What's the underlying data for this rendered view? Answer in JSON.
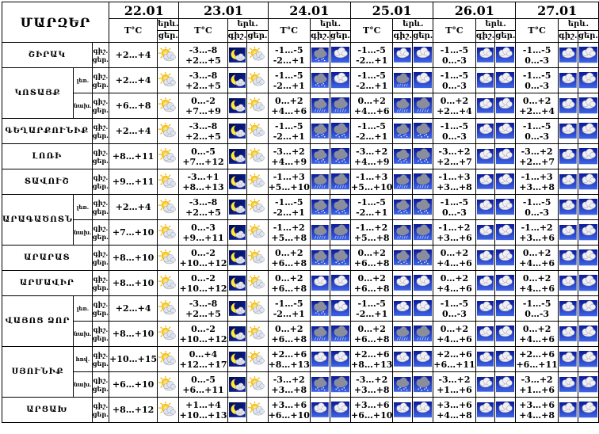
{
  "title": "ՄԱՐԶԵՐ",
  "days": [
    "22.01",
    "23.01",
    "24.01",
    "25.01",
    "26.01",
    "27.01"
  ],
  "col_temp": "T°C",
  "col_phen": "երև.",
  "col_night": "գիշ.",
  "col_dayt": "ցեր.",
  "tod_night": "գիշ.",
  "tod_day": "ցեր.",
  "rows": [
    {
      "region": "ՇԻՐԱԿ",
      "zone": "",
      "t": [
        "+2…+4",
        "-3…-8\n+2…+5",
        "-1…-5\n-2…+1",
        "-1…-5\n-2…+1",
        "-1…-5\n0…-3",
        "-1…-5\n0…-3"
      ],
      "ic": [
        [
          "sunc"
        ],
        [
          "moon",
          "sunc"
        ],
        [
          "snow",
          "cloud"
        ],
        [
          "cloud",
          "cloud"
        ],
        [
          "cloud",
          "cloud"
        ],
        [
          "cloud",
          "cloud"
        ]
      ]
    },
    {
      "region": "ԿՈՏԱՅՔ",
      "zone": "լեռ.",
      "t": [
        "+2…+4",
        "-3…-8\n+2…+5",
        "-1…-5\n-2…+1",
        "-1…-5\n-2…+1",
        "-1…-5\n0…-3",
        "-1…-5\n0…-3"
      ],
      "ic": [
        [
          "sunc"
        ],
        [
          "moon",
          "sunc"
        ],
        [
          "snow",
          "cloud"
        ],
        [
          "rain",
          "cloud"
        ],
        [
          "cloud",
          "cloud"
        ],
        [
          "cloud",
          "cloud"
        ]
      ]
    },
    {
      "region": "ԿՈՏԱՅՔ",
      "zone": "նախ.",
      "t": [
        "+6…+8",
        "0…-2\n+7…+9",
        "0…+2\n+4…+6",
        "0…+2\n+4…+6",
        "0…+2\n+2…+4",
        "0…+2\n+2…+4"
      ],
      "ic": [
        [
          "sunc"
        ],
        [
          "moon",
          "sunc"
        ],
        [
          "rain",
          "rain"
        ],
        [
          "rain",
          "rain"
        ],
        [
          "cloud",
          "cloud"
        ],
        [
          "cloud",
          "cloud"
        ]
      ]
    },
    {
      "region": "ԳԵՂԱՐՔՈՒՆԻՔ",
      "zone": "",
      "t": [
        "+2…+4",
        "-3…-8\n+2…+5",
        "-1…-5\n-2…+1",
        "-1…-5\n-2…+1",
        "-1…-5\n0…-3",
        "-1…-5\n0…-3"
      ],
      "ic": [
        [
          "sunc"
        ],
        [
          "moon",
          "sunc"
        ],
        [
          "snow",
          "snow"
        ],
        [
          "snow",
          "snow"
        ],
        [
          "cloud",
          "cloud"
        ],
        [
          "cloud",
          "cloud"
        ]
      ]
    },
    {
      "region": "ԼՈՌԻ",
      "zone": "",
      "t": [
        "+8…+11",
        "0…-5\n+7…+12",
        "-3…+2\n+4…+9",
        "-3…+2\n+4…+9",
        "-3…+2\n+2…+7",
        "-3…+2\n+2…+7"
      ],
      "ic": [
        [
          "sunc"
        ],
        [
          "moon",
          "sunc"
        ],
        [
          "snow",
          "snow"
        ],
        [
          "snow",
          "snow"
        ],
        [
          "cloud",
          "cloud"
        ],
        [
          "cloud",
          "cloud"
        ]
      ]
    },
    {
      "region": "ՏԱՎՈՒՇ",
      "zone": "",
      "t": [
        "+9…+11",
        "-3…+1\n+8…+13",
        "-1…+3\n+5…+10",
        "-1…+3\n+5…+10",
        "-1…+3\n+3…+8",
        "-1…+3\n+3…+8"
      ],
      "ic": [
        [
          "sunc"
        ],
        [
          "moon",
          "sunc"
        ],
        [
          "rain",
          "rain"
        ],
        [
          "rain",
          "rain"
        ],
        [
          "cloud",
          "cloud"
        ],
        [
          "cloud",
          "cloud"
        ]
      ]
    },
    {
      "region": "ԱՐԱԳԱԾՈՏՆ",
      "zone": "լեռ.",
      "t": [
        "+2…+4",
        "-3…-8\n+2…+5",
        "-1…-5\n-2…+1",
        "-1…-5\n-2…+1",
        "-1…-5\n0…-3",
        "-1…-5\n0…-3"
      ],
      "ic": [
        [
          "sunc"
        ],
        [
          "moon",
          "sunc"
        ],
        [
          "snow",
          "snow"
        ],
        [
          "snow",
          "snow"
        ],
        [
          "cloud",
          "cloud"
        ],
        [
          "cloud",
          "cloud"
        ]
      ]
    },
    {
      "region": "ԱՐԱԳԱԾՈՏՆ",
      "zone": "նախ.",
      "t": [
        "+7…+10",
        "0…-3\n+9…+11",
        "-1…+2\n+5…+8",
        "-1…+2\n+5…+8",
        "-1…+2\n+3…+6",
        "-1…+2\n+3…+6"
      ],
      "ic": [
        [
          "sunc"
        ],
        [
          "moon",
          "sunc"
        ],
        [
          "rain",
          "rain"
        ],
        [
          "rain",
          "rain"
        ],
        [
          "cloud",
          "cloud"
        ],
        [
          "cloud",
          "cloud"
        ]
      ]
    },
    {
      "region": "ԱՐԱՐԱՏ",
      "zone": "",
      "t": [
        "+8…+10",
        "0…-2\n+10…+12",
        "0…+2\n+6…+8",
        "0…+2\n+6…+8",
        "0…+2\n+4…+6",
        "0…+2\n+4…+6"
      ],
      "ic": [
        [
          "sunc"
        ],
        [
          "moon",
          "sunc"
        ],
        [
          "snow",
          "snow"
        ],
        [
          "snow",
          "snow"
        ],
        [
          "cloud",
          "cloud"
        ],
        [
          "cloud",
          "cloud"
        ]
      ]
    },
    {
      "region": "ԱՐՄԱՎԻՐ",
      "zone": "",
      "t": [
        "+8…+10",
        "0…-2\n+10…+12",
        "0…+2\n+6…+8",
        "0…+2\n+6…+8",
        "0…+2\n+4…+6",
        "0…+2\n+4…+6"
      ],
      "ic": [
        [
          "sunc"
        ],
        [
          "moon",
          "sunc"
        ],
        [
          "cloud",
          "cloud"
        ],
        [
          "cloud",
          "cloud"
        ],
        [
          "cloud",
          "cloud"
        ],
        [
          "cloud",
          "cloud"
        ]
      ]
    },
    {
      "region": "ՎԱՅՈՑ ՁՈՐ",
      "zone": "լեռ.",
      "t": [
        "+2…+4",
        "-3…-8\n+2…+5",
        "-1…-5\n-2…+1",
        "-1…-5\n-2…+1",
        "-1…-5\n0…-3",
        "-1…-5\n0…-3"
      ],
      "ic": [
        [
          "sunc"
        ],
        [
          "moon",
          "sunc"
        ],
        [
          "snow",
          "cloud"
        ],
        [
          "cloud",
          "cloud"
        ],
        [
          "cloud",
          "cloud"
        ],
        [
          "cloud",
          "cloud"
        ]
      ]
    },
    {
      "region": "ՎԱՅՈՑ ՁՈՐ",
      "zone": "նախ.",
      "t": [
        "+8…+10",
        "0…-2\n+10…+12",
        "0…+2\n+6…+8",
        "0…+2\n+6…+8",
        "0…+2\n+4…+6",
        "0…+2\n+4…+6"
      ],
      "ic": [
        [
          "sunc"
        ],
        [
          "moon",
          "sunc"
        ],
        [
          "rain",
          "rain"
        ],
        [
          "rain",
          "rain"
        ],
        [
          "cloud",
          "cloud"
        ],
        [
          "cloud",
          "cloud"
        ]
      ]
    },
    {
      "region": "ՍՅՈՒՆԻՔ",
      "zone": "հով.",
      "t": [
        "+10…+15",
        "0…+4\n+12…+17",
        "+2…+6\n+8…+13",
        "+2…+6\n+8…+13",
        "+2…+6\n+6…+11",
        "+2…+6\n+6…+11"
      ],
      "ic": [
        [
          "sunc"
        ],
        [
          "moon",
          "sunc"
        ],
        [
          "cloud",
          "cloud"
        ],
        [
          "cloud",
          "cloud"
        ],
        [
          "cloud",
          "cloud"
        ],
        [
          "cloud",
          "cloud"
        ]
      ]
    },
    {
      "region": "ՍՅՈՒՆԻՔ",
      "zone": "նախ.",
      "t": [
        "+6…+10",
        "0…-5\n+6…+11",
        "-3…+2\n+3…+8",
        "-3…+2\n+3…+8",
        "-3…+2\n+1…+6",
        "-3…+2\n+1…+6"
      ],
      "ic": [
        [
          "sunc"
        ],
        [
          "moon",
          "sunc"
        ],
        [
          "snow",
          "snow"
        ],
        [
          "snow",
          "snow"
        ],
        [
          "cloud",
          "cloud"
        ],
        [
          "cloud",
          "cloud"
        ]
      ]
    },
    {
      "region": "ԱՐՑԱԽ",
      "zone": "",
      "t": [
        "+8…+12",
        "+1…+4\n+10…+13",
        "+3…+6\n+6…+10",
        "+3…+6\n+6…+10",
        "+3…+6\n+4…+8",
        "+3…+6\n+4…+8"
      ],
      "ic": [
        [
          "sunc"
        ],
        [
          "moon",
          "sunc"
        ],
        [
          "cloud",
          "cloud"
        ],
        [
          "cloud",
          "cloud"
        ],
        [
          "cloud",
          "cloud"
        ],
        [
          "cloud",
          "cloud"
        ]
      ]
    }
  ]
}
